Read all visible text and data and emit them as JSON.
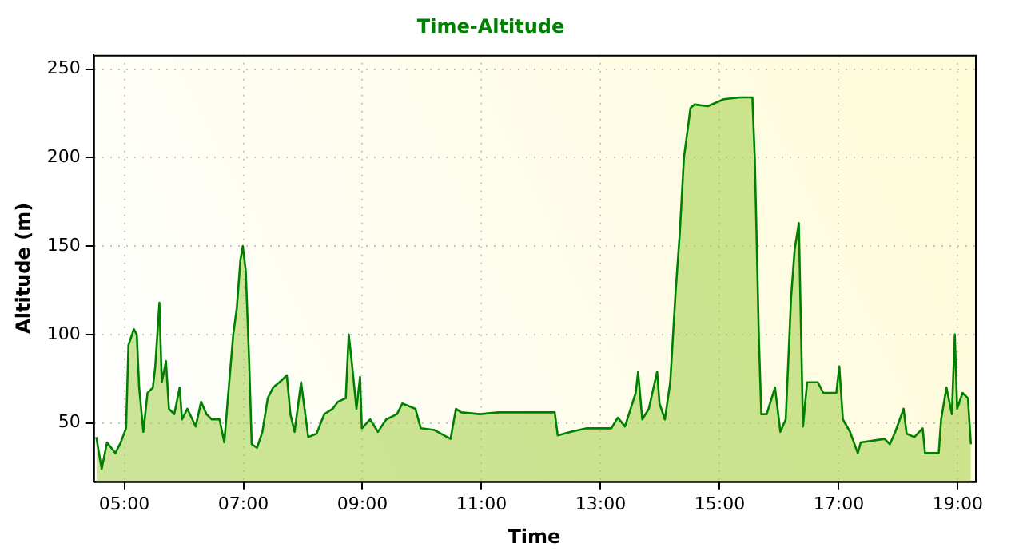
{
  "chart_data": {
    "type": "area",
    "title": "Time-Altitude",
    "xlabel": "Time",
    "ylabel": "Altitude (m)",
    "xlim": [
      4.48,
      19.29
    ],
    "ylim": [
      17,
      258
    ],
    "xticks": [
      {
        "value": 5,
        "label": "05:00"
      },
      {
        "value": 7,
        "label": "07:00"
      },
      {
        "value": 9,
        "label": "09:00"
      },
      {
        "value": 11,
        "label": "11:00"
      },
      {
        "value": 13,
        "label": "13:00"
      },
      {
        "value": 15,
        "label": "15:00"
      },
      {
        "value": 17,
        "label": "17:00"
      },
      {
        "value": 19,
        "label": "19:00"
      }
    ],
    "yticks": [
      50,
      100,
      150,
      200,
      250
    ],
    "grid": true,
    "legend": false,
    "marker": "none",
    "line_style": "solid",
    "series": [
      {
        "color": "#008000",
        "x": [
          4.53,
          4.62,
          4.71,
          4.85,
          4.94,
          5.03,
          5.07,
          5.16,
          5.21,
          5.25,
          5.32,
          5.39,
          5.48,
          5.52,
          5.59,
          5.63,
          5.7,
          5.75,
          5.84,
          5.93,
          5.97,
          6.06,
          6.2,
          6.29,
          6.38,
          6.47,
          6.6,
          6.68,
          6.74,
          6.83,
          6.89,
          6.95,
          6.99,
          7.04,
          7.1,
          7.14,
          7.23,
          7.32,
          7.41,
          7.5,
          7.64,
          7.73,
          7.79,
          7.86,
          7.97,
          8.09,
          8.23,
          8.36,
          8.5,
          8.59,
          8.72,
          8.77,
          8.81,
          8.9,
          8.96,
          8.99,
          9.13,
          9.26,
          9.4,
          9.58,
          9.67,
          9.89,
          9.98,
          10.21,
          10.48,
          10.57,
          10.66,
          10.97,
          11.29,
          12.23,
          12.28,
          12.5,
          12.77,
          13.18,
          13.29,
          13.41,
          13.59,
          13.63,
          13.7,
          13.81,
          13.95,
          13.99,
          14.08,
          14.17,
          14.26,
          14.33,
          14.4,
          14.51,
          14.58,
          14.8,
          15.07,
          15.34,
          15.55,
          15.59,
          15.66,
          15.7,
          15.79,
          15.93,
          16.02,
          16.11,
          16.2,
          16.26,
          16.33,
          16.4,
          16.47,
          16.65,
          16.74,
          16.96,
          17.01,
          17.07,
          17.19,
          17.32,
          17.37,
          17.77,
          17.86,
          17.95,
          18.09,
          18.14,
          18.27,
          18.41,
          18.45,
          18.68,
          18.72,
          18.81,
          18.9,
          18.95,
          18.99,
          19.08,
          19.17,
          19.22
        ],
        "values": [
          42,
          24,
          39,
          33,
          39,
          47,
          94,
          103,
          100,
          70,
          45,
          67,
          70,
          82,
          118,
          73,
          85,
          58,
          55,
          70,
          52,
          58,
          48,
          62,
          55,
          52,
          52,
          39,
          64,
          100,
          115,
          142,
          150,
          136,
          82,
          38,
          36,
          45,
          64,
          70,
          74,
          77,
          55,
          45,
          73,
          42,
          44,
          55,
          58,
          62,
          64,
          100,
          88,
          58,
          76,
          47,
          52,
          45,
          52,
          55,
          61,
          58,
          47,
          46,
          41,
          58,
          56,
          55,
          56,
          56,
          43,
          45,
          47,
          47,
          53,
          48,
          67,
          79,
          52,
          58,
          79,
          61,
          52,
          73,
          124,
          157,
          200,
          228,
          230,
          229,
          233,
          234,
          234,
          200,
          97,
          55,
          55,
          70,
          45,
          52,
          121,
          148,
          163,
          48,
          73,
          73,
          67,
          67,
          82,
          52,
          45,
          33,
          39,
          41,
          38,
          45,
          58,
          44,
          42,
          47,
          33,
          33,
          52,
          70,
          55,
          100,
          58,
          67,
          64,
          38
        ]
      }
    ]
  }
}
